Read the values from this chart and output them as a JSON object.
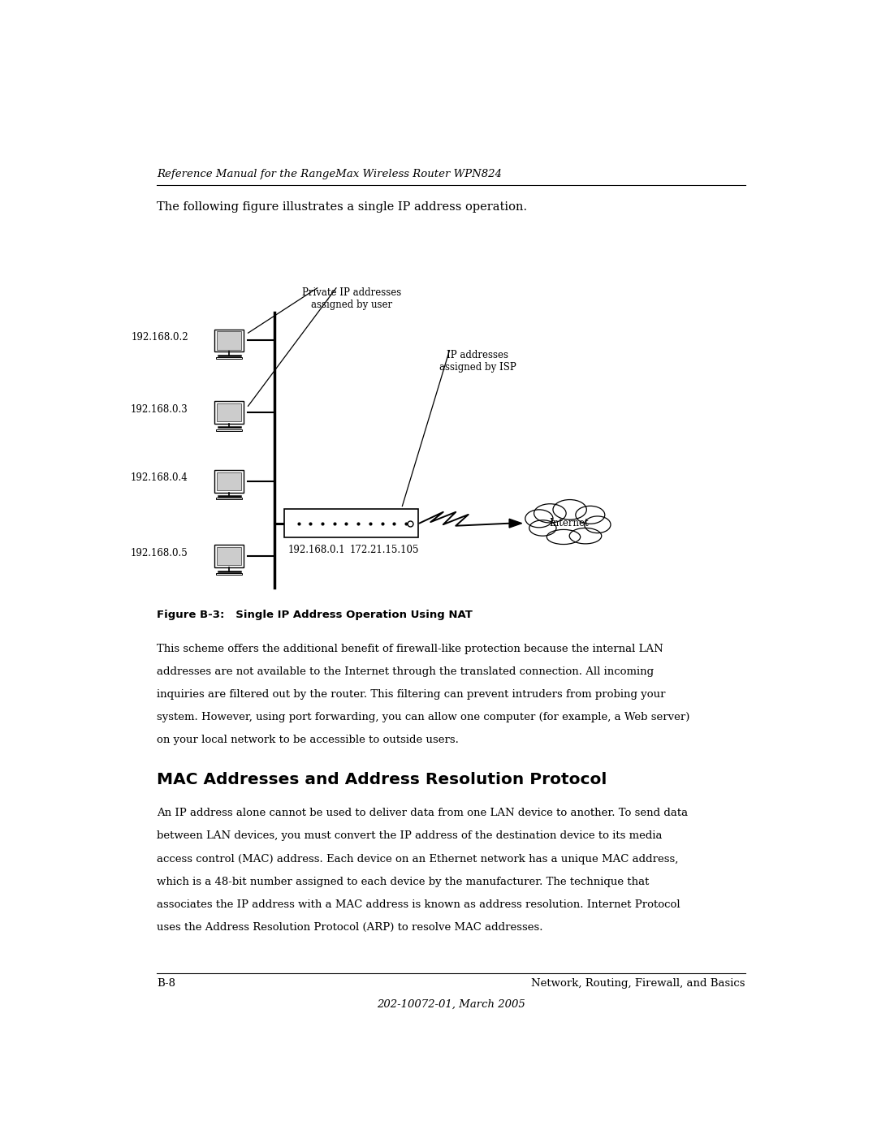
{
  "header_italic": "Reference Manual for the RangeMax Wireless Router WPN824",
  "intro_text": "The following figure illustrates a single IP address operation.",
  "computers": [
    {
      "label": "192.168.0.2"
    },
    {
      "label": "192.168.0.3"
    },
    {
      "label": "192.168.0.4"
    },
    {
      "label": "192.168.0.5"
    }
  ],
  "router_label_left": "192.168.0.1",
  "router_label_right": "172.21.15.105",
  "private_ip_label": "Private IP addresses\nassigned by user",
  "isp_label": "IP addresses\nassigned by ISP",
  "internet_label": "Internet",
  "figure_caption_bold": "Figure B-3:   Single IP Address Operation Using NAT",
  "body_text": "This scheme offers the additional benefit of firewall-like protection because the internal LAN\naddresses are not available to the Internet through the translated connection. All incoming\ninquiries are filtered out by the router. This filtering can prevent intruders from probing your\nsystem. However, using port forwarding, you can allow one computer (for example, a Web server)\non your local network to be accessible to outside users.",
  "section_title": "MAC Addresses and Address Resolution Protocol",
  "section_body": "An IP address alone cannot be used to deliver data from one LAN device to another. To send data\nbetween LAN devices, you must convert the IP address of the destination device to its media\naccess control (MAC) address. Each device on an Ethernet network has a unique MAC address,\nwhich is a 48-bit number assigned to each device by the manufacturer. The technique that\nassociates the IP address with a MAC address is known as address resolution. Internet Protocol\nuses the Address Resolution Protocol (ARP) to resolve MAC addresses.",
  "footer_left": "B-8",
  "footer_right": "Network, Routing, Firewall, and Basics",
  "footer_center": "202-10072-01, March 2005",
  "bg_color": "#ffffff",
  "text_color": "#000000"
}
